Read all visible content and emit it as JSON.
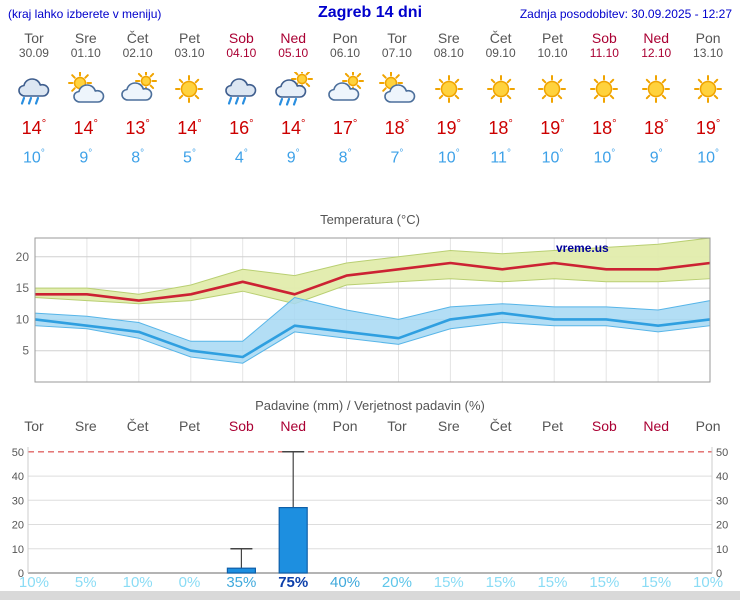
{
  "header": {
    "left_note": "(kraj lahko izberete v meniju)",
    "title": "Zagreb 14 dni",
    "last_update": "Zadnja posodobitev: 30.09.2025 - 12:27"
  },
  "units": {
    "degree": "°",
    "percent": "%"
  },
  "days": [
    {
      "name": "Tor",
      "date": "30.09",
      "weekend": false,
      "icon": "rain",
      "high": 14,
      "low": 10,
      "precip_prob": 10
    },
    {
      "name": "Sre",
      "date": "01.10",
      "weekend": false,
      "icon": "partly-cloudy",
      "high": 14,
      "low": 9,
      "precip_prob": 5
    },
    {
      "name": "Čet",
      "date": "02.10",
      "weekend": false,
      "icon": "mostly-cloudy",
      "high": 13,
      "low": 8,
      "precip_prob": 10
    },
    {
      "name": "Pet",
      "date": "03.10",
      "weekend": false,
      "icon": "sunny",
      "high": 14,
      "low": 5,
      "precip_prob": 0
    },
    {
      "name": "Sob",
      "date": "04.10",
      "weekend": true,
      "icon": "rain",
      "high": 16,
      "low": 4,
      "precip_prob": 35
    },
    {
      "name": "Ned",
      "date": "05.10",
      "weekend": true,
      "icon": "showers",
      "high": 14,
      "low": 9,
      "precip_prob": 75
    },
    {
      "name": "Pon",
      "date": "06.10",
      "weekend": false,
      "icon": "mostly-cloudy",
      "high": 17,
      "low": 8,
      "precip_prob": 40
    },
    {
      "name": "Tor",
      "date": "07.10",
      "weekend": false,
      "icon": "partly-cloudy",
      "high": 18,
      "low": 7,
      "precip_prob": 20
    },
    {
      "name": "Sre",
      "date": "08.10",
      "weekend": false,
      "icon": "sunny",
      "high": 19,
      "low": 10,
      "precip_prob": 15
    },
    {
      "name": "Čet",
      "date": "09.10",
      "weekend": false,
      "icon": "sunny",
      "high": 18,
      "low": 11,
      "precip_prob": 15
    },
    {
      "name": "Pet",
      "date": "10.10",
      "weekend": false,
      "icon": "sunny",
      "high": 19,
      "low": 10,
      "precip_prob": 15
    },
    {
      "name": "Sob",
      "date": "11.10",
      "weekend": true,
      "icon": "sunny",
      "high": 18,
      "low": 10,
      "precip_prob": 15
    },
    {
      "name": "Ned",
      "date": "12.10",
      "weekend": true,
      "icon": "sunny",
      "high": 18,
      "low": 9,
      "precip_prob": 15
    },
    {
      "name": "Pon",
      "date": "13.10",
      "weekend": false,
      "icon": "sunny",
      "high": 19,
      "low": 10,
      "precip_prob": 10
    }
  ],
  "chart_data": [
    {
      "type": "line",
      "title": "Temperatura (°C)",
      "x_labels": [
        "Tor 30.09",
        "Sre 01.10",
        "Čet 02.10",
        "Pet 03.10",
        "Sob 04.10",
        "Ned 05.10",
        "Pon 06.10",
        "Tor 07.10",
        "Sre 08.10",
        "Čet 09.10",
        "Pet 10.10",
        "Sob 11.10",
        "Ned 12.10",
        "Pon 13.10"
      ],
      "series": [
        {
          "name": "max_temp",
          "values": [
            14,
            14,
            13,
            14,
            16,
            14,
            17,
            18,
            19,
            18,
            19,
            18,
            18,
            19
          ]
        },
        {
          "name": "max_range_upper",
          "values": [
            15,
            15,
            14,
            15.5,
            18,
            17,
            19,
            20,
            21,
            20.5,
            21,
            21.5,
            22,
            23
          ]
        },
        {
          "name": "max_range_lower",
          "values": [
            13.5,
            13,
            12.5,
            13,
            14.5,
            12.5,
            15.5,
            16,
            16.5,
            16,
            16.5,
            16,
            16,
            16.5
          ]
        },
        {
          "name": "min_temp",
          "values": [
            10,
            9,
            8,
            5,
            4,
            9,
            8,
            7,
            10,
            11,
            10,
            10,
            9,
            10
          ]
        },
        {
          "name": "min_range_upper",
          "values": [
            11,
            10.5,
            9.5,
            6.5,
            6.5,
            13.5,
            11.5,
            10,
            12,
            12.5,
            12,
            12,
            11.5,
            13
          ]
        },
        {
          "name": "min_range_lower",
          "values": [
            9,
            8.5,
            7,
            4,
            3,
            8,
            7,
            6,
            8.5,
            9.5,
            9,
            9,
            8,
            9
          ]
        }
      ],
      "ylim": [
        0,
        23
      ],
      "yticks": [
        5,
        10,
        15,
        20
      ],
      "grid": true,
      "watermark": "vreme.us"
    },
    {
      "type": "bar",
      "title": "Padavine (mm) / Verjetnost padavin (%)",
      "categories": [
        "Tor",
        "Sre",
        "Čet",
        "Pet",
        "Sob",
        "Ned",
        "Pon",
        "Tor",
        "Sre",
        "Čet",
        "Pet",
        "Sob",
        "Ned",
        "Pon"
      ],
      "precip_mm": [
        0,
        0,
        0,
        0,
        2,
        27,
        0,
        0,
        0,
        0,
        0,
        0,
        0,
        0
      ],
      "precip_max_mm": [
        0,
        0,
        0,
        0,
        10,
        50,
        0,
        0,
        0,
        0,
        0,
        0,
        0,
        0
      ],
      "probability_pct": [
        10,
        5,
        10,
        0,
        35,
        75,
        40,
        20,
        15,
        15,
        15,
        15,
        15,
        10
      ],
      "ylim": [
        0,
        52
      ],
      "yticks": [
        0,
        10,
        20,
        30,
        40,
        50
      ],
      "threshold_line": 50
    }
  ],
  "colors": {
    "header_blue": "#0000cc",
    "weekend_red": "#aa0033",
    "weekday_gray": "#555555",
    "high_temp_red": "#cc0000",
    "low_temp_blue": "#3da1e8",
    "max_line": "#cc2233",
    "max_band": "#e2ecac",
    "max_band_edge": "#b9cf72",
    "min_line": "#2f9fe0",
    "min_band": "#a6d8f3",
    "min_band_edge": "#57b5e8",
    "bar_fill": "#1d8fe0",
    "bar_edge": "#0f5fa8",
    "threshold_red": "#e06666",
    "prob_low": "#8adcf5",
    "prob_midlow": "#5ec6ea",
    "prob_mid": "#3fa9dc",
    "prob_high": "#0c3faa",
    "watermark_navy": "#000099"
  }
}
